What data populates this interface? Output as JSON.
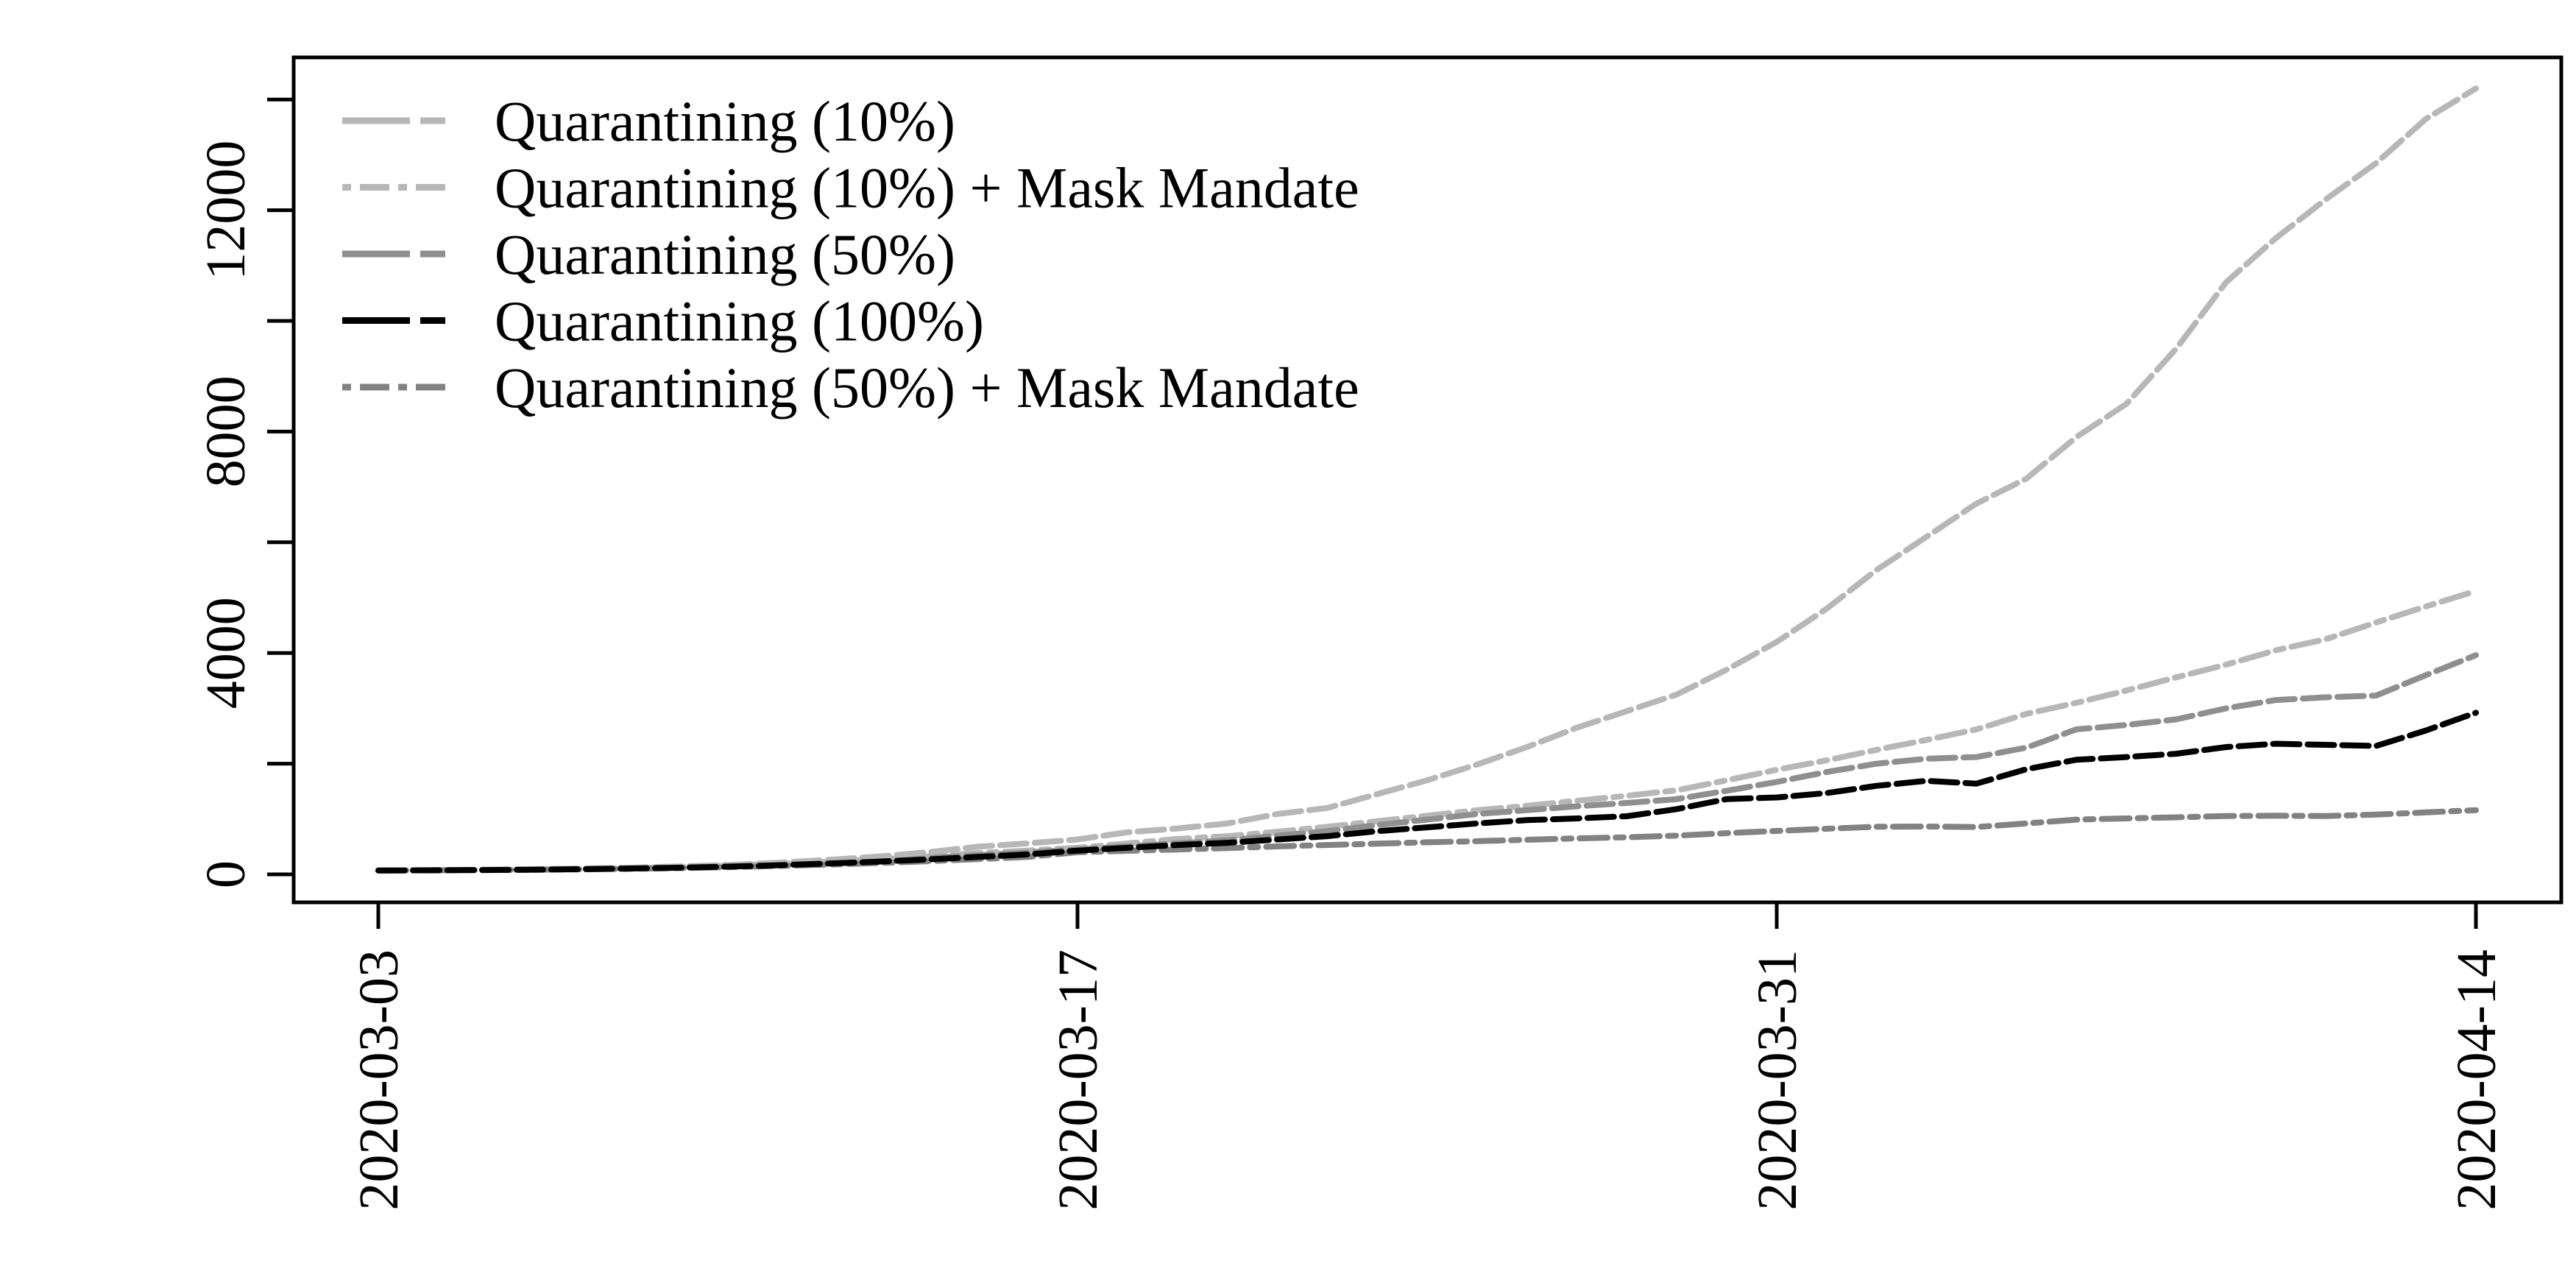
{
  "chart_data": {
    "type": "line",
    "title": "",
    "xlabel": "",
    "ylabel": "",
    "grid": false,
    "legend_position": "top-left",
    "x_axis": {
      "kind": "date",
      "total_days": 42,
      "tick_days": [
        0,
        14,
        28,
        42
      ],
      "tick_labels": [
        "2020-03-03",
        "2020-03-17",
        "2020-03-31",
        "2020-04-14"
      ],
      "label_rotation_deg": -90
    },
    "y_axis": {
      "minor_tick_values": [
        0,
        2000,
        4000,
        6000,
        8000,
        10000,
        12000,
        14000
      ],
      "labeled_tick_values": [
        0,
        4000,
        8000,
        12000
      ],
      "labeled_tick_labels": [
        "0",
        "4000",
        "8000",
        "12000"
      ],
      "ylim": [
        0,
        14760
      ],
      "label_rotation_deg": -90
    },
    "sample_interval_days": 1,
    "series": [
      {
        "name": "Quarantining (10%)",
        "slug": "quarantining-10",
        "color": "#b7b7b7",
        "linetype": "longdash",
        "values": [
          70,
          75,
          82,
          92,
          105,
          120,
          142,
          170,
          210,
          260,
          320,
          400,
          500,
          560,
          630,
          760,
          830,
          920,
          1090,
          1200,
          1450,
          1700,
          1985,
          2300,
          2650,
          2950,
          3250,
          3700,
          4200,
          4800,
          5500,
          6100,
          6700,
          7150,
          7900,
          8500,
          9500,
          10700,
          11500,
          12200,
          12850,
          13650,
          14200
        ]
      },
      {
        "name": "Quarantining (10%) + Mask Mandate",
        "slug": "quarantining-10-mask-mandate",
        "color": "#b7b7b7",
        "linetype": "dotdash",
        "values": [
          70,
          74,
          80,
          88,
          98,
          112,
          132,
          158,
          190,
          228,
          272,
          325,
          385,
          430,
          480,
          560,
          640,
          690,
          770,
          860,
          960,
          1060,
          1160,
          1240,
          1330,
          1420,
          1520,
          1700,
          1890,
          2060,
          2250,
          2430,
          2620,
          2900,
          3100,
          3320,
          3560,
          3790,
          4050,
          4250,
          4550,
          4840,
          5120
        ]
      },
      {
        "name": "Quarantining (50%)",
        "slug": "quarantining-50",
        "color": "#8f8f8f",
        "linetype": "longdash",
        "values": [
          70,
          74,
          79,
          86,
          95,
          108,
          126,
          148,
          176,
          210,
          250,
          295,
          345,
          395,
          450,
          505,
          560,
          615,
          700,
          780,
          890,
          990,
          1090,
          1160,
          1230,
          1290,
          1360,
          1510,
          1670,
          1850,
          2000,
          2090,
          2120,
          2290,
          2620,
          2700,
          2800,
          3000,
          3150,
          3200,
          3230,
          3600,
          3960
        ]
      },
      {
        "name": "Quarantining (100%)",
        "slug": "quarantining-100",
        "color": "#000000",
        "linetype": "longdash",
        "values": [
          70,
          73,
          78,
          84,
          93,
          105,
          120,
          140,
          165,
          195,
          230,
          270,
          315,
          360,
          430,
          480,
          530,
          570,
          630,
          690,
          780,
          850,
          920,
          980,
          1010,
          1050,
          1180,
          1360,
          1390,
          1470,
          1600,
          1690,
          1640,
          1900,
          2070,
          2120,
          2180,
          2300,
          2360,
          2340,
          2320,
          2600,
          2920
        ]
      },
      {
        "name": "Quarantining (50%) + Mask Mandate",
        "slug": "quarantining-50-mask-mandate",
        "color": "#828282",
        "linetype": "dotdash",
        "values": [
          70,
          73,
          77,
          82,
          90,
          100,
          113,
          130,
          151,
          176,
          205,
          238,
          275,
          315,
          400,
          425,
          450,
          475,
          505,
          530,
          555,
          580,
          600,
          625,
          650,
          670,
          700,
          745,
          785,
          825,
          860,
          865,
          855,
          920,
          990,
          1010,
          1030,
          1055,
          1060,
          1055,
          1080,
          1120,
          1160
        ]
      }
    ],
    "legend_entries": [
      "Quarantining (10%)",
      "Quarantining (10%) + Mask Mandate",
      "Quarantining (50%)",
      "Quarantining (100%)",
      "Quarantining (50%) + Mask Mandate"
    ]
  }
}
